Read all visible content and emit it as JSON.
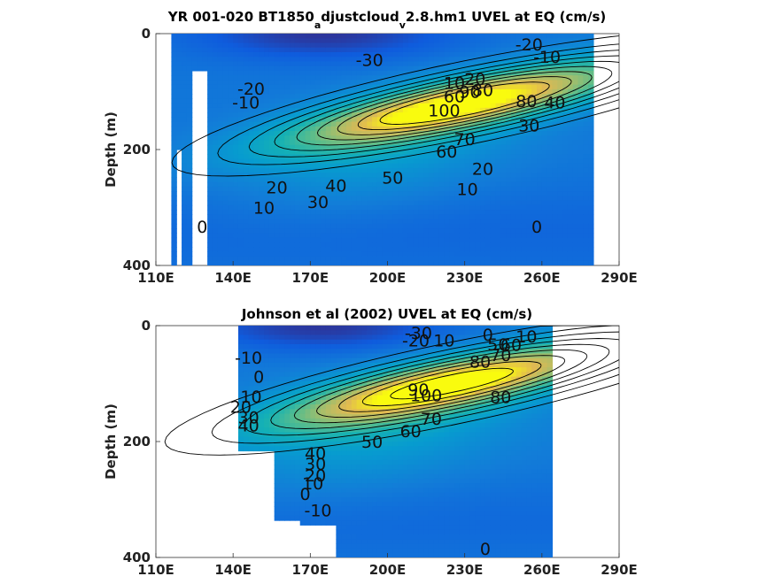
{
  "chart_data": [
    {
      "type": "heatmap",
      "title": "YR 001-020 BT1850",
      "title_sub": "a",
      "title_mid": "djustcloud",
      "title_sub2": "v",
      "title_tail": "2.8.hm1 UVEL at EQ (cm/s)",
      "xlabel": "",
      "ylabel": "Depth (m)",
      "xlim": [
        110,
        290
      ],
      "ylim": [
        400,
        0
      ],
      "x_ticks": [
        "110E",
        "140E",
        "170E",
        "200E",
        "230E",
        "260E",
        "290E"
      ],
      "y_ticks": [
        "0",
        "200",
        "400"
      ],
      "core": {
        "lon": 230,
        "depth": 120,
        "max": 110
      },
      "contour_labels": [
        {
          "text": "-30",
          "lon": 193,
          "depth": 45
        },
        {
          "text": "-20",
          "lon": 255,
          "depth": 18
        },
        {
          "text": "-10",
          "lon": 262,
          "depth": 40
        },
        {
          "text": "-20",
          "lon": 147,
          "depth": 95
        },
        {
          "text": "-10",
          "lon": 145,
          "depth": 118
        },
        {
          "text": "10",
          "lon": 226,
          "depth": 85
        },
        {
          "text": "20",
          "lon": 234,
          "depth": 78
        },
        {
          "text": "60",
          "lon": 226,
          "depth": 108
        },
        {
          "text": "90",
          "lon": 232,
          "depth": 100
        },
        {
          "text": "80",
          "lon": 237,
          "depth": 97
        },
        {
          "text": "100",
          "lon": 222,
          "depth": 132
        },
        {
          "text": "80",
          "lon": 254,
          "depth": 116
        },
        {
          "text": "40",
          "lon": 265,
          "depth": 118
        },
        {
          "text": "30",
          "lon": 255,
          "depth": 158
        },
        {
          "text": "70",
          "lon": 230,
          "depth": 182
        },
        {
          "text": "60",
          "lon": 223,
          "depth": 203
        },
        {
          "text": "50",
          "lon": 202,
          "depth": 248
        },
        {
          "text": "40",
          "lon": 180,
          "depth": 262
        },
        {
          "text": "30",
          "lon": 173,
          "depth": 290
        },
        {
          "text": "20",
          "lon": 157,
          "depth": 265
        },
        {
          "text": "10",
          "lon": 152,
          "depth": 300
        },
        {
          "text": "20",
          "lon": 237,
          "depth": 233
        },
        {
          "text": "10",
          "lon": 231,
          "depth": 268
        },
        {
          "text": "0",
          "lon": 128,
          "depth": 333
        },
        {
          "text": "0",
          "lon": 258,
          "depth": 333
        }
      ]
    },
    {
      "type": "heatmap",
      "title": "Johnson et al (2002) UVEL at EQ (cm/s)",
      "xlabel": "",
      "ylabel": "Depth (m)",
      "xlim": [
        110,
        290
      ],
      "ylim": [
        400,
        0
      ],
      "x_ticks": [
        "110E",
        "140E",
        "170E",
        "200E",
        "230E",
        "260E",
        "290E"
      ],
      "y_ticks": [
        "0",
        "200",
        "400"
      ],
      "core": {
        "lon": 225,
        "depth": 100,
        "max": 100
      },
      "contour_labels": [
        {
          "text": "-30",
          "lon": 212,
          "depth": 12
        },
        {
          "text": "-20",
          "lon": 211,
          "depth": 25
        },
        {
          "text": "10",
          "lon": 222,
          "depth": 25
        },
        {
          "text": "0",
          "lon": 239,
          "depth": 15
        },
        {
          "text": "10",
          "lon": 254,
          "depth": 18
        },
        {
          "text": "50",
          "lon": 243,
          "depth": 32
        },
        {
          "text": "60",
          "lon": 248,
          "depth": 33
        },
        {
          "text": "70",
          "lon": 244,
          "depth": 50
        },
        {
          "text": "80",
          "lon": 236,
          "depth": 62
        },
        {
          "text": "90",
          "lon": 212,
          "depth": 110
        },
        {
          "text": "100",
          "lon": 215,
          "depth": 120
        },
        {
          "text": "80",
          "lon": 244,
          "depth": 123
        },
        {
          "text": "70",
          "lon": 217,
          "depth": 160
        },
        {
          "text": "60",
          "lon": 209,
          "depth": 182
        },
        {
          "text": "50",
          "lon": 194,
          "depth": 200
        },
        {
          "text": "-10",
          "lon": 146,
          "depth": 55
        },
        {
          "text": "0",
          "lon": 150,
          "depth": 88
        },
        {
          "text": "10",
          "lon": 147,
          "depth": 122
        },
        {
          "text": "20",
          "lon": 143,
          "depth": 140
        },
        {
          "text": "30",
          "lon": 146,
          "depth": 158
        },
        {
          "text": "40",
          "lon": 146,
          "depth": 172
        },
        {
          "text": "40",
          "lon": 172,
          "depth": 220
        },
        {
          "text": "30",
          "lon": 172,
          "depth": 238
        },
        {
          "text": "20",
          "lon": 172,
          "depth": 258
        },
        {
          "text": "10",
          "lon": 171,
          "depth": 272
        },
        {
          "text": "0",
          "lon": 168,
          "depth": 290
        },
        {
          "text": "-10",
          "lon": 173,
          "depth": 318
        },
        {
          "text": "0",
          "lon": 238,
          "depth": 385
        }
      ]
    }
  ]
}
